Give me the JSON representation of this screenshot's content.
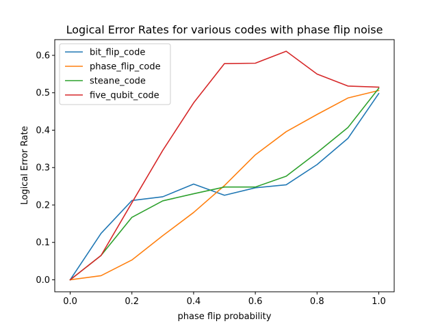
{
  "chart_data": {
    "type": "line",
    "title": "Logical Error Rates for various codes with phase flip noise",
    "xlabel": "phase flip probability",
    "ylabel": "Logical Error Rate",
    "xlim": [
      -0.05,
      1.05
    ],
    "ylim": [
      -0.032,
      0.642
    ],
    "x_ticks": [
      "0.0",
      "0.2",
      "0.4",
      "0.6",
      "0.8",
      "1.0"
    ],
    "y_ticks": [
      "0.0",
      "0.1",
      "0.2",
      "0.3",
      "0.4",
      "0.5",
      "0.6"
    ],
    "grid": false,
    "legend_position": "top-left",
    "x": [
      0.0,
      0.1,
      0.2,
      0.3,
      0.4,
      0.5,
      0.6,
      0.7,
      0.8,
      0.9,
      1.0
    ],
    "series": [
      {
        "name": "bit_flip_code",
        "color": "#1f77b4",
        "values": [
          0.0,
          0.124,
          0.212,
          0.222,
          0.256,
          0.226,
          0.246,
          0.254,
          0.308,
          0.378,
          0.498
        ]
      },
      {
        "name": "phase_flip_code",
        "color": "#ff7f0e",
        "values": [
          0.0,
          0.011,
          0.053,
          0.118,
          0.18,
          0.252,
          0.334,
          0.396,
          0.442,
          0.486,
          0.506
        ]
      },
      {
        "name": "steane_code",
        "color": "#2ca02c",
        "values": [
          0.0,
          0.065,
          0.167,
          0.211,
          0.23,
          0.248,
          0.248,
          0.277,
          0.34,
          0.407,
          0.512
        ]
      },
      {
        "name": "five_qubit_code",
        "color": "#d62728",
        "values": [
          0.0,
          0.065,
          0.206,
          0.346,
          0.473,
          0.578,
          0.579,
          0.611,
          0.55,
          0.518,
          0.515
        ]
      }
    ]
  }
}
